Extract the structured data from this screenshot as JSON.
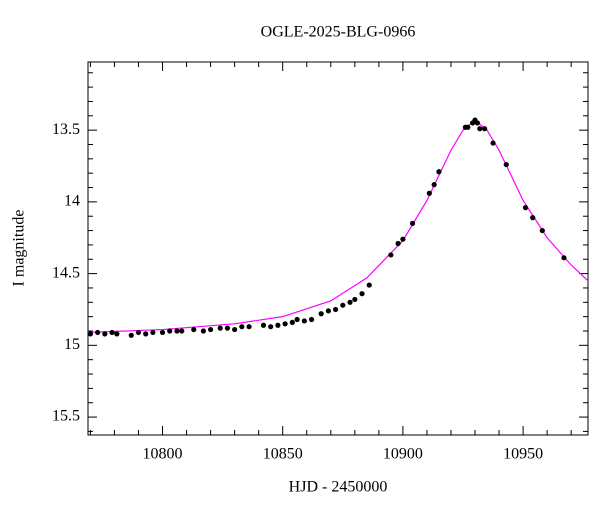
{
  "chart_data": {
    "type": "scatter",
    "title": "OGLE-2025-BLG-0966",
    "x_label": "HJD - 2450000",
    "y_label": "I magnitude",
    "xlim": [
      10769,
      10977
    ],
    "ylim": [
      15.625,
      13.025
    ],
    "xticks": [
      10800,
      10850,
      10900,
      10950
    ],
    "yticks": [
      13.5,
      14,
      14.5,
      15,
      15.5
    ],
    "xminorticks": [
      10770,
      10780,
      10790,
      10810,
      10820,
      10830,
      10840,
      10860,
      10870,
      10880,
      10890,
      10910,
      10920,
      10930,
      10940,
      10960,
      10970
    ],
    "yminorticks": [
      13.1,
      13.2,
      13.3,
      13.4,
      13.6,
      13.7,
      13.8,
      13.9,
      14.1,
      14.2,
      14.3,
      14.4,
      14.6,
      14.7,
      14.8,
      14.9,
      15.1,
      15.2,
      15.3,
      15.4,
      15.6
    ],
    "points": {
      "color": "#000000",
      "x": [
        10770,
        10773,
        10776,
        10779,
        10781,
        10787,
        10790,
        10793,
        10796,
        10800,
        10803,
        10806,
        10808,
        10813,
        10817,
        10820,
        10824,
        10827,
        10830,
        10833,
        10836,
        10842,
        10845,
        10848,
        10851,
        10854,
        10856,
        10859,
        10862,
        10866,
        10869,
        10872,
        10875,
        10878,
        10880,
        10883,
        10886,
        10895,
        10898,
        10900,
        10904,
        10911,
        10913,
        10915,
        10926,
        10927,
        10929,
        10930,
        10931,
        10932,
        10934,
        10937.5,
        10943,
        10951,
        10954,
        10958,
        10967
      ],
      "y": [
        14.92,
        14.91,
        14.92,
        14.91,
        14.92,
        14.93,
        14.91,
        14.92,
        14.91,
        14.91,
        14.9,
        14.9,
        14.9,
        14.89,
        14.9,
        14.89,
        14.88,
        14.88,
        14.89,
        14.87,
        14.87,
        14.86,
        14.87,
        14.86,
        14.85,
        14.84,
        14.82,
        14.83,
        14.82,
        14.78,
        14.76,
        14.75,
        14.72,
        14.7,
        14.68,
        14.64,
        14.58,
        14.37,
        14.29,
        14.26,
        14.15,
        13.94,
        13.88,
        13.79,
        13.48,
        13.48,
        13.45,
        13.43,
        13.45,
        13.49,
        13.49,
        13.59,
        13.74,
        14.04,
        14.11,
        14.2,
        14.39
      ]
    },
    "model": {
      "color": "#ff00ff",
      "x": [
        10769,
        10800,
        10830,
        10850,
        10870,
        10885,
        10900,
        10910,
        10920,
        10925,
        10930,
        10935,
        10940,
        10950,
        10960,
        10970,
        10977
      ],
      "y": [
        14.91,
        14.89,
        14.85,
        14.8,
        14.69,
        14.53,
        14.27,
        13.99,
        13.64,
        13.5,
        13.43,
        13.5,
        13.64,
        13.99,
        14.25,
        14.44,
        14.55
      ]
    }
  }
}
